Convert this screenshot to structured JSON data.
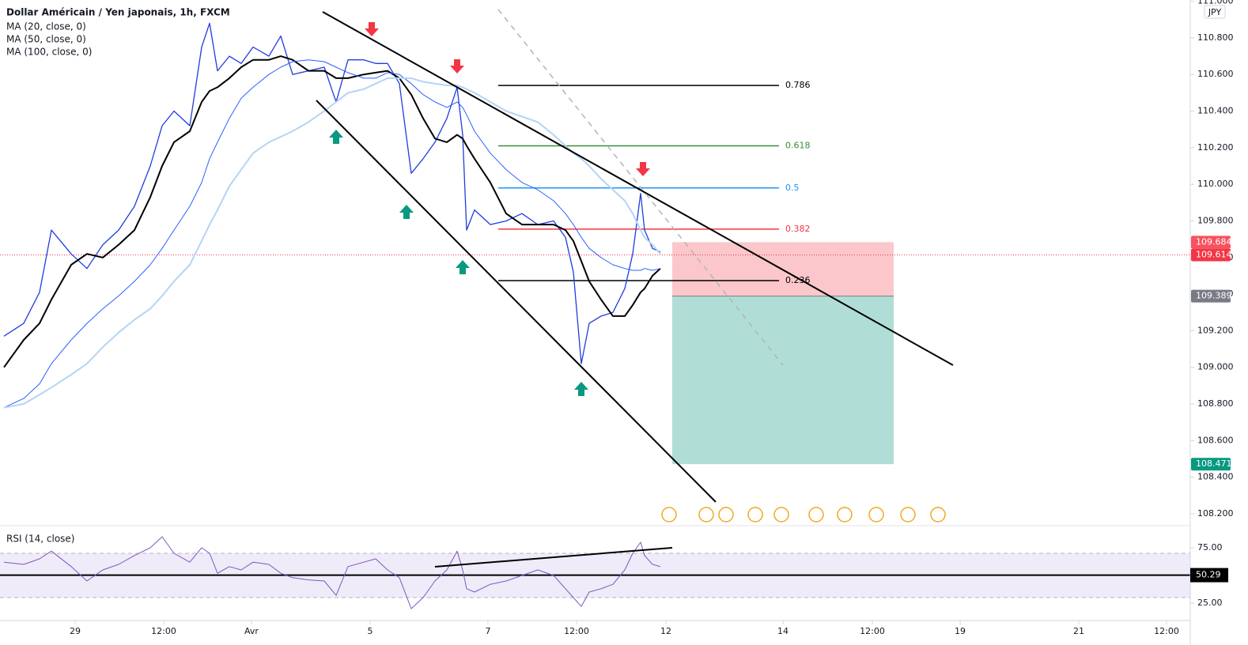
{
  "chart_data": [
    {
      "type": "line",
      "title": "Dollar Américain / Yen japonais, 1h, FXCM",
      "currency": "JPY",
      "x": [
        5,
        30,
        50,
        65,
        90,
        110,
        130,
        150,
        170,
        190,
        205,
        220,
        240,
        255,
        265,
        275,
        290,
        305,
        320,
        340,
        355,
        370,
        390,
        410,
        425,
        440,
        460,
        475,
        490,
        505,
        520,
        535,
        550,
        565,
        578,
        585,
        590,
        600,
        620,
        640,
        660,
        680,
        700,
        715,
        725,
        735,
        745,
        760,
        775,
        790,
        800,
        810,
        815,
        825,
        835
      ],
      "xlim": [
        0,
        1505
      ],
      "ylim": [
        108.135,
        111.007
      ],
      "yticks": [
        {
          "value": 108.2,
          "label": "108.200"
        },
        {
          "value": 108.4,
          "label": "108.400"
        },
        {
          "value": 108.6,
          "label": "108.600"
        },
        {
          "value": 108.8,
          "label": "108.800"
        },
        {
          "value": 109.0,
          "label": "109.000"
        },
        {
          "value": 109.2,
          "label": "109.200"
        },
        {
          "value": 109.4,
          "label": "109.400"
        },
        {
          "value": 109.6,
          "label": "109.600"
        },
        {
          "value": 109.8,
          "label": "109.800"
        },
        {
          "value": 110.0,
          "label": "110.000"
        },
        {
          "value": 110.2,
          "label": "110.200"
        },
        {
          "value": 110.4,
          "label": "110.400"
        },
        {
          "value": 110.6,
          "label": "110.600"
        },
        {
          "value": 110.8,
          "label": "110.800"
        },
        {
          "value": 111.0,
          "label": "111.000"
        }
      ],
      "grid": false,
      "series": [
        {
          "color": "#1f3ce0",
          "width": 1.3,
          "values": [
            109.17,
            109.24,
            109.41,
            109.75,
            109.62,
            109.54,
            109.67,
            109.75,
            109.88,
            110.1,
            110.32,
            110.4,
            110.32,
            110.75,
            110.88,
            110.62,
            110.7,
            110.66,
            110.75,
            110.7,
            110.81,
            110.6,
            110.62,
            110.64,
            110.45,
            110.68,
            110.68,
            110.66,
            110.66,
            110.55,
            110.06,
            110.14,
            110.23,
            110.36,
            110.53,
            110.27,
            109.75,
            109.86,
            109.78,
            109.8,
            109.84,
            109.78,
            109.8,
            109.71,
            109.52,
            109.02,
            109.24,
            109.28,
            109.3,
            109.43,
            109.62,
            109.95,
            109.75,
            109.65,
            109.63
          ]
        },
        {
          "name": "MA (20, close, 0)",
          "color": "#000000",
          "width": 2,
          "values": [
            109.0,
            109.15,
            109.24,
            109.37,
            109.56,
            109.62,
            109.6,
            109.67,
            109.75,
            109.93,
            110.1,
            110.23,
            110.29,
            110.45,
            110.51,
            110.53,
            110.58,
            110.64,
            110.68,
            110.68,
            110.7,
            110.68,
            110.62,
            110.62,
            110.58,
            110.58,
            110.6,
            110.61,
            110.62,
            110.58,
            110.49,
            110.36,
            110.25,
            110.23,
            110.27,
            110.25,
            110.21,
            110.14,
            110.01,
            109.84,
            109.78,
            109.78,
            109.78,
            109.75,
            109.69,
            109.58,
            109.47,
            109.37,
            109.28,
            109.28,
            109.34,
            109.41,
            109.43,
            109.5,
            109.54
          ]
        },
        {
          "name": "MA (50, close, 0)",
          "color": "#2962ff",
          "width": 1,
          "values": [
            108.78,
            108.83,
            108.91,
            109.02,
            109.15,
            109.24,
            109.32,
            109.39,
            109.47,
            109.56,
            109.65,
            109.75,
            109.88,
            110.01,
            110.14,
            110.23,
            110.36,
            110.47,
            110.53,
            110.6,
            110.64,
            110.67,
            110.68,
            110.67,
            110.64,
            110.61,
            110.58,
            110.58,
            110.61,
            110.6,
            110.55,
            110.49,
            110.45,
            110.42,
            110.45,
            110.42,
            110.38,
            110.29,
            110.17,
            110.08,
            110.01,
            109.97,
            109.91,
            109.84,
            109.78,
            109.71,
            109.65,
            109.6,
            109.56,
            109.54,
            109.53,
            109.53,
            109.54,
            109.53,
            109.54
          ]
        },
        {
          "name": "MA (100, close, 0)",
          "color": "#b3d4f5",
          "width": 2,
          "values": [
            108.78,
            108.8,
            108.85,
            108.89,
            108.96,
            109.02,
            109.11,
            109.19,
            109.26,
            109.32,
            109.39,
            109.47,
            109.56,
            109.69,
            109.78,
            109.86,
            109.99,
            110.08,
            110.17,
            110.23,
            110.26,
            110.29,
            110.34,
            110.4,
            110.45,
            110.5,
            110.52,
            110.55,
            110.58,
            110.58,
            110.58,
            110.56,
            110.55,
            110.54,
            110.54,
            110.53,
            110.52,
            110.5,
            110.45,
            110.4,
            110.37,
            110.34,
            110.27,
            110.21,
            110.17,
            110.14,
            110.1,
            110.03,
            109.97,
            109.91,
            109.84,
            109.75,
            109.71,
            109.67,
            109.62
          ]
        }
      ],
      "fib_levels": [
        {
          "label": "0.786",
          "value": 110.54,
          "color": "#000000"
        },
        {
          "label": "0.618",
          "value": 110.21,
          "color": "#388e3c"
        },
        {
          "label": "0.5",
          "value": 109.98,
          "color": "#2196f3"
        },
        {
          "label": "0.382",
          "value": 109.755,
          "color": "#f23645"
        },
        {
          "label": "0.236",
          "value": 109.474,
          "color": "#000000"
        }
      ],
      "position": {
        "stop": 109.684,
        "entry": 109.389,
        "target": 108.471
      },
      "last_price": 109.614
    },
    {
      "type": "line",
      "title": "RSI (14, close)",
      "x": [
        5,
        30,
        50,
        65,
        90,
        110,
        130,
        150,
        170,
        190,
        205,
        220,
        240,
        255,
        265,
        275,
        290,
        305,
        320,
        340,
        355,
        370,
        390,
        410,
        425,
        440,
        460,
        475,
        490,
        505,
        520,
        535,
        550,
        565,
        578,
        585,
        590,
        600,
        620,
        640,
        660,
        680,
        700,
        715,
        725,
        735,
        745,
        760,
        775,
        790,
        800,
        810,
        815,
        825,
        835
      ],
      "xlim": [
        0,
        1505
      ],
      "ylim": [
        9.3,
        95
      ],
      "yticks": [
        {
          "value": 25,
          "label": "25.00"
        },
        {
          "value": 75,
          "label": "75.00"
        }
      ],
      "xticks": [
        {
          "value": 95,
          "label": "29"
        },
        {
          "value": 207,
          "label": "12:00"
        },
        {
          "value": 318,
          "label": "Avr"
        },
        {
          "value": 468,
          "label": "5"
        },
        {
          "value": 617,
          "label": "7"
        },
        {
          "value": 729,
          "label": "12:00"
        },
        {
          "value": 842,
          "label": "12"
        },
        {
          "value": 990,
          "label": "14"
        },
        {
          "value": 1103,
          "label": "12:00"
        },
        {
          "value": 1214,
          "label": "19"
        },
        {
          "value": 1364,
          "label": "21"
        },
        {
          "value": 1475,
          "label": "12:00"
        }
      ],
      "band": [
        30,
        70
      ],
      "hline": 50.29,
      "series": [
        {
          "color": "#7e57c2",
          "width": 1,
          "values": [
            62,
            60,
            65,
            72,
            58,
            45,
            55,
            60,
            68,
            75,
            85,
            70,
            62,
            75,
            70,
            52,
            58,
            55,
            62,
            60,
            52,
            48,
            46,
            45,
            32,
            58,
            62,
            65,
            55,
            48,
            20,
            30,
            45,
            55,
            72,
            55,
            38,
            35,
            42,
            45,
            50,
            55,
            50,
            38,
            30,
            22,
            35,
            38,
            42,
            55,
            70,
            80,
            68,
            60,
            58
          ]
        }
      ]
    }
  ]
}
